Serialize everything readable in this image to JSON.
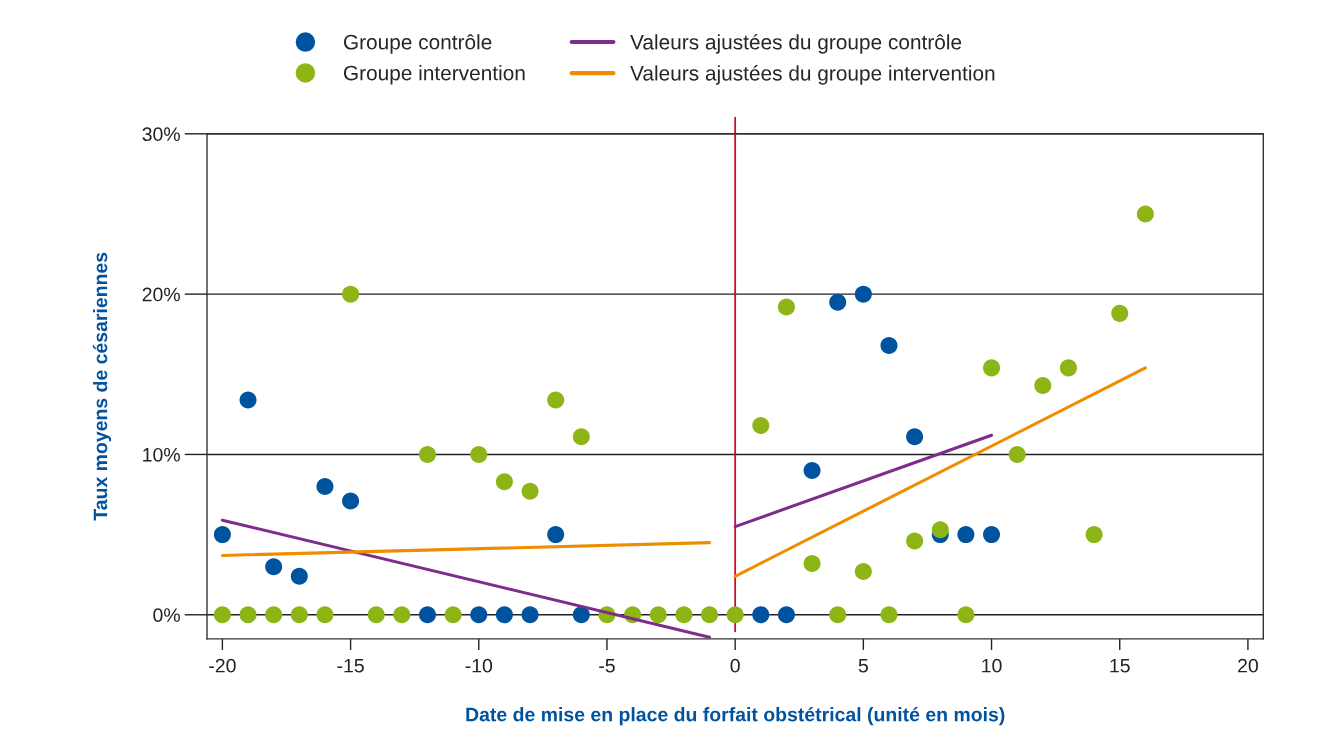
{
  "chart_data": {
    "type": "scatter",
    "xlabel": "Date de mise en place du forfait obstétrical (unité en mois)",
    "ylabel": "Taux moyens de césariennes",
    "xlim": [
      -20.6,
      20.6
    ],
    "xticks": [
      -20,
      -15,
      -10,
      -5,
      0,
      5,
      10,
      15,
      20
    ],
    "ylim": [
      -1.5,
      30
    ],
    "yticks": [
      {
        "value": 0,
        "label": "0%"
      },
      {
        "value": 10,
        "label": "10%"
      },
      {
        "value": 20,
        "label": "20%"
      },
      {
        "value": 30,
        "label": "30%"
      }
    ],
    "grid": "y",
    "legend": "top",
    "ref_lines": [
      {
        "axis": "x",
        "value": 0,
        "color": "#c8102e"
      }
    ],
    "series": [
      {
        "name": "Groupe contrôle",
        "marker": "circle",
        "color": "#00539f",
        "x": [
          -20,
          -19,
          -18,
          -17,
          -16,
          -15,
          -12,
          -10,
          -9,
          -8,
          -7,
          -6,
          1,
          2,
          3,
          4,
          5,
          6,
          7,
          8,
          9,
          10
        ],
        "values": [
          5.0,
          13.4,
          3.0,
          2.4,
          8.0,
          7.1,
          0,
          0,
          0,
          0,
          5.0,
          0,
          0,
          0,
          9.0,
          19.5,
          20.0,
          16.8,
          11.1,
          5.0,
          5.0,
          5.0
        ]
      },
      {
        "name": "Groupe intervention",
        "marker": "circle",
        "color": "#8db516",
        "x": [
          -20,
          -19,
          -18,
          -17,
          -16,
          -15,
          -14,
          -13,
          -12,
          -11,
          -10,
          -9,
          -8,
          -7,
          -6,
          -5,
          -4,
          -3,
          -2,
          -1,
          0,
          1,
          2,
          3,
          4,
          5,
          6,
          7,
          8,
          9,
          10,
          11,
          12,
          13,
          14,
          15,
          16
        ],
        "values": [
          0,
          0,
          0,
          0,
          0,
          20.0,
          0,
          0,
          10.0,
          0,
          10.0,
          8.3,
          7.7,
          13.4,
          11.1,
          0,
          0,
          0,
          0,
          0,
          0,
          11.8,
          19.2,
          3.2,
          0,
          2.7,
          0,
          4.6,
          5.3,
          0,
          15.4,
          10.0,
          14.3,
          15.4,
          5.0,
          18.8,
          25.0
        ]
      },
      {
        "name": "Valeurs ajustées du groupe contrôle",
        "type": "line",
        "color": "#7d2e8c",
        "x": [
          -20,
          -1
        ],
        "values": [
          5.9,
          -1.4
        ]
      },
      {
        "type": "line",
        "color": "#7d2e8c",
        "x": [
          0,
          10
        ],
        "values": [
          5.5,
          11.2
        ]
      },
      {
        "name": "Valeurs ajustées du groupe intervention",
        "type": "line",
        "color": "#f08c00",
        "x": [
          -20,
          -1
        ],
        "values": [
          3.7,
          4.5
        ]
      },
      {
        "type": "line",
        "color": "#f08c00",
        "x": [
          0,
          16
        ],
        "values": [
          2.4,
          15.4
        ]
      }
    ]
  }
}
